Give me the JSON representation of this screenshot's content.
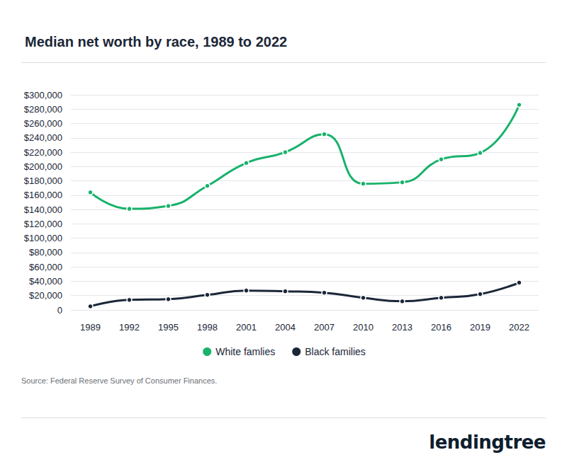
{
  "chart_data": {
    "type": "line",
    "title": "Median net worth by race, 1989 to 2022",
    "source": "Source: Federal Reserve Survey of Consumer Finances.",
    "brand": "lendingtree",
    "categories": [
      "1989",
      "1992",
      "1995",
      "1998",
      "2001",
      "2004",
      "2007",
      "2010",
      "2013",
      "2016",
      "2019",
      "2022"
    ],
    "series": [
      {
        "name": "White famlies",
        "color": "#18b26b",
        "marker": "circle",
        "line_style": "solid",
        "values": [
          164000,
          141000,
          145000,
          173000,
          205000,
          220000,
          245000,
          176000,
          178000,
          210000,
          219000,
          286000
        ]
      },
      {
        "name": "Black families",
        "color": "#1b2738",
        "marker": "circle",
        "line_style": "solid",
        "values": [
          5000,
          14000,
          15000,
          21000,
          27000,
          26000,
          24000,
          17000,
          12000,
          17000,
          22000,
          38000
        ]
      }
    ],
    "ylim": [
      0,
      300000
    ],
    "yticks": [
      0,
      {
        "value": 20000,
        "label": "$20,000"
      },
      {
        "value": 40000,
        "label": "$40,000"
      },
      {
        "value": 60000,
        "label": "$60,000"
      },
      {
        "value": 80000,
        "label": "$80,000"
      },
      {
        "value": 100000,
        "label": "$100,000"
      },
      {
        "value": 120000,
        "label": "$120,000"
      },
      {
        "value": 140000,
        "label": "$140,000"
      },
      {
        "value": 160000,
        "label": "$160,000"
      },
      {
        "value": 180000,
        "label": "$180,000"
      },
      {
        "value": 200000,
        "label": "$200,000"
      },
      {
        "value": 220000,
        "label": "$220,000"
      },
      {
        "value": 240000,
        "label": "$240,000"
      },
      {
        "value": 260000,
        "label": "$260,000"
      },
      {
        "value": 280000,
        "label": "$280,000"
      },
      {
        "value": 300000,
        "label": "$300,000"
      }
    ],
    "grid": true,
    "legend": "bottom"
  }
}
